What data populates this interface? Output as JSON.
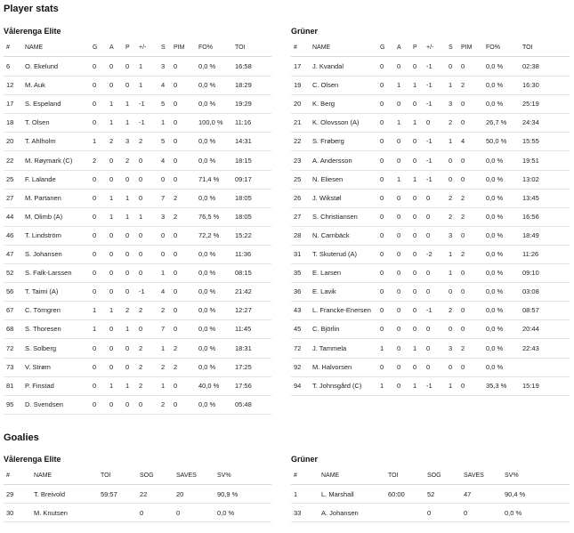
{
  "sections": {
    "player_stats_title": "Player stats",
    "goalies_title": "Goalies"
  },
  "player_stats": {
    "columns": [
      "#",
      "NAME",
      "G",
      "A",
      "P",
      "+/-",
      "S",
      "PIM",
      "FO%",
      "TOI"
    ],
    "left": {
      "team": "Vålerenga Elite",
      "rows": [
        [
          "6",
          "O. Ekelund",
          "0",
          "0",
          "0",
          "1",
          "3",
          "0",
          "0,0 %",
          "16:58"
        ],
        [
          "12",
          "M. Auk",
          "0",
          "0",
          "0",
          "1",
          "4",
          "0",
          "0,0 %",
          "18:29"
        ],
        [
          "17",
          "S. Espeland",
          "0",
          "1",
          "1",
          "-1",
          "5",
          "0",
          "0,0 %",
          "19:29"
        ],
        [
          "18",
          "T. Olsen",
          "0",
          "1",
          "1",
          "-1",
          "1",
          "0",
          "100,0 %",
          "11:16"
        ],
        [
          "20",
          "T. Ahlholm",
          "1",
          "2",
          "3",
          "2",
          "5",
          "0",
          "0,0 %",
          "14:31"
        ],
        [
          "22",
          "M. Røymark (C)",
          "2",
          "0",
          "2",
          "0",
          "4",
          "0",
          "0,0 %",
          "18:15"
        ],
        [
          "25",
          "F. Lalande",
          "0",
          "0",
          "0",
          "0",
          "0",
          "0",
          "71,4 %",
          "09:17"
        ],
        [
          "27",
          "M. Partanen",
          "0",
          "1",
          "1",
          "0",
          "7",
          "2",
          "0,0 %",
          "18:05"
        ],
        [
          "44",
          "M. Olimb (A)",
          "0",
          "1",
          "1",
          "1",
          "3",
          "2",
          "76,5 %",
          "18:05"
        ],
        [
          "46",
          "T. Lindström",
          "0",
          "0",
          "0",
          "0",
          "0",
          "0",
          "72,2 %",
          "15:22"
        ],
        [
          "47",
          "S. Johansen",
          "0",
          "0",
          "0",
          "0",
          "0",
          "0",
          "0,0 %",
          "11:36"
        ],
        [
          "52",
          "S. Falk-Larssen",
          "0",
          "0",
          "0",
          "0",
          "1",
          "0",
          "0,0 %",
          "08:15"
        ],
        [
          "56",
          "T. Taimi (A)",
          "0",
          "0",
          "0",
          "-1",
          "4",
          "0",
          "0,0 %",
          "21:42"
        ],
        [
          "67",
          "C. Törngren",
          "1",
          "1",
          "2",
          "2",
          "2",
          "0",
          "0,0 %",
          "12:27"
        ],
        [
          "68",
          "S. Thoresen",
          "1",
          "0",
          "1",
          "0",
          "7",
          "0",
          "0,0 %",
          "11:45"
        ],
        [
          "72",
          "S. Solberg",
          "0",
          "0",
          "0",
          "2",
          "1",
          "2",
          "0,0 %",
          "18:31"
        ],
        [
          "73",
          "V. Strøm",
          "0",
          "0",
          "0",
          "2",
          "2",
          "2",
          "0,0 %",
          "17:25"
        ],
        [
          "81",
          "P. Finstad",
          "0",
          "1",
          "1",
          "2",
          "1",
          "0",
          "40,0 %",
          "17:56"
        ],
        [
          "95",
          "D. Svendsen",
          "0",
          "0",
          "0",
          "0",
          "2",
          "0",
          "0,0 %",
          "05:48"
        ]
      ]
    },
    "right": {
      "team": "Grüner",
      "rows": [
        [
          "17",
          "J. Kvandal",
          "0",
          "0",
          "0",
          "-1",
          "0",
          "0",
          "0,0 %",
          "02:38"
        ],
        [
          "19",
          "C. Olsen",
          "0",
          "1",
          "1",
          "-1",
          "1",
          "2",
          "0,0 %",
          "16:30"
        ],
        [
          "20",
          "K. Berg",
          "0",
          "0",
          "0",
          "-1",
          "3",
          "0",
          "0,0 %",
          "25:19"
        ],
        [
          "21",
          "K. Olovsson (A)",
          "0",
          "1",
          "1",
          "0",
          "2",
          "0",
          "26,7 %",
          "24:34"
        ],
        [
          "22",
          "S. Frøberg",
          "0",
          "0",
          "0",
          "-1",
          "1",
          "4",
          "50,0 %",
          "15:55"
        ],
        [
          "23",
          "A. Andersson",
          "0",
          "0",
          "0",
          "-1",
          "0",
          "0",
          "0,0 %",
          "19:51"
        ],
        [
          "25",
          "N. Eliesen",
          "0",
          "1",
          "1",
          "-1",
          "0",
          "0",
          "0,0 %",
          "13:02"
        ],
        [
          "26",
          "J. Wikstøl",
          "0",
          "0",
          "0",
          "0",
          "2",
          "2",
          "0,0 %",
          "13:45"
        ],
        [
          "27",
          "S. Christiansen",
          "0",
          "0",
          "0",
          "0",
          "2",
          "2",
          "0,0 %",
          "16:56"
        ],
        [
          "28",
          "N. Carnbäck",
          "0",
          "0",
          "0",
          "0",
          "3",
          "0",
          "0,0 %",
          "18:49"
        ],
        [
          "31",
          "T. Skuterud (A)",
          "0",
          "0",
          "0",
          "-2",
          "1",
          "2",
          "0,0 %",
          "11:26"
        ],
        [
          "35",
          "E. Larsen",
          "0",
          "0",
          "0",
          "0",
          "1",
          "0",
          "0,0 %",
          "09:10"
        ],
        [
          "36",
          "E. Lavik",
          "0",
          "0",
          "0",
          "0",
          "0",
          "0",
          "0,0 %",
          "03:08"
        ],
        [
          "43",
          "L. Francke-Enersen",
          "0",
          "0",
          "0",
          "-1",
          "2",
          "0",
          "0,0 %",
          "08:57"
        ],
        [
          "45",
          "C. Björlin",
          "0",
          "0",
          "0",
          "0",
          "0",
          "0",
          "0,0 %",
          "20:44"
        ],
        [
          "72",
          "J. Tammela",
          "1",
          "0",
          "1",
          "0",
          "3",
          "2",
          "0,0 %",
          "22:43"
        ],
        [
          "92",
          "M. Halvorsen",
          "0",
          "0",
          "0",
          "0",
          "0",
          "0",
          "0,0 %",
          ""
        ],
        [
          "94",
          "T. Johnsgård (C)",
          "1",
          "0",
          "1",
          "-1",
          "1",
          "0",
          "35,3 %",
          "15:19"
        ]
      ]
    }
  },
  "goalies": {
    "columns": [
      "#",
      "NAME",
      "TOI",
      "SOG",
      "SAVES",
      "SV%"
    ],
    "left": {
      "team": "Vålerenga Elite",
      "rows": [
        [
          "29",
          "T. Breivold",
          "59:57",
          "22",
          "20",
          "90,9 %"
        ],
        [
          "30",
          "M. Knutsen",
          "",
          "0",
          "0",
          "0,0 %"
        ]
      ]
    },
    "right": {
      "team": "Grüner",
      "rows": [
        [
          "1",
          "L. Marshall",
          "60:00",
          "52",
          "47",
          "90,4 %"
        ],
        [
          "33",
          "A. Johansen",
          "",
          "0",
          "0",
          "0,0 %"
        ]
      ]
    }
  }
}
